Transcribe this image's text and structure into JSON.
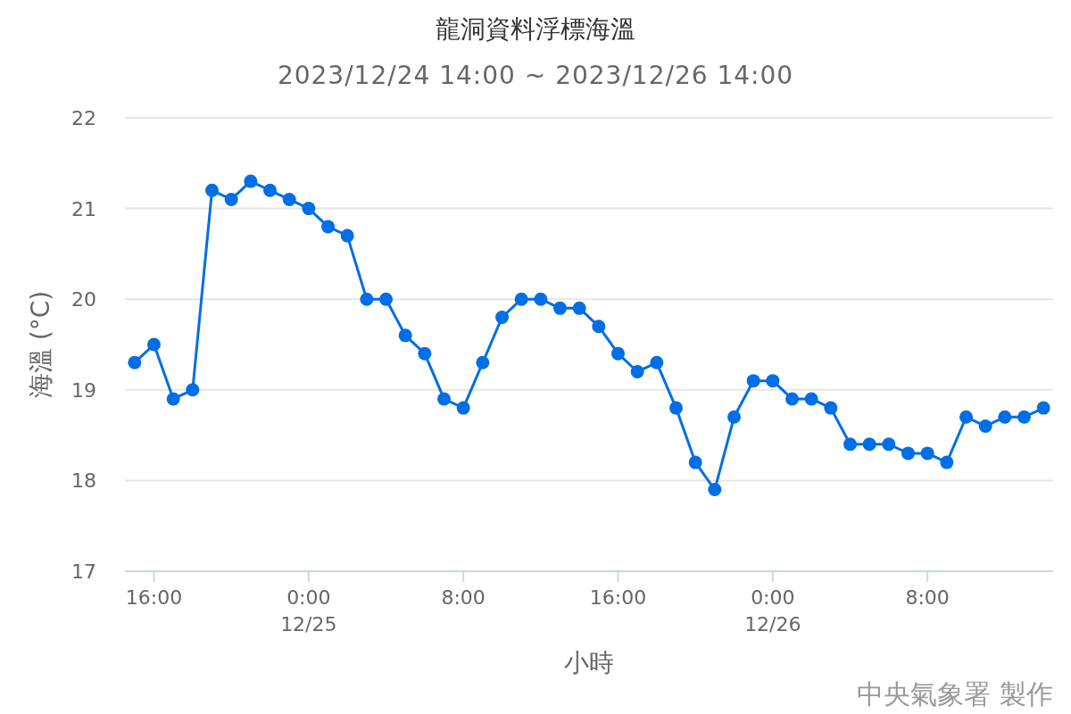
{
  "chart_data": {
    "type": "line",
    "title": "龍洞資料浮標海溫",
    "subtitle": "2023/12/24 14:00 ~ 2023/12/26 14:00",
    "xlabel": "小時",
    "ylabel": "海溫 (°C)",
    "x": [
      "2023-12-24T15:00",
      "2023-12-24T16:00",
      "2023-12-24T17:00",
      "2023-12-24T18:00",
      "2023-12-24T19:00",
      "2023-12-24T20:00",
      "2023-12-24T21:00",
      "2023-12-24T22:00",
      "2023-12-24T23:00",
      "2023-12-25T00:00",
      "2023-12-25T01:00",
      "2023-12-25T02:00",
      "2023-12-25T03:00",
      "2023-12-25T04:00",
      "2023-12-25T05:00",
      "2023-12-25T06:00",
      "2023-12-25T07:00",
      "2023-12-25T08:00",
      "2023-12-25T09:00",
      "2023-12-25T10:00",
      "2023-12-25T11:00",
      "2023-12-25T12:00",
      "2023-12-25T13:00",
      "2023-12-25T14:00",
      "2023-12-25T15:00",
      "2023-12-25T16:00",
      "2023-12-25T17:00",
      "2023-12-25T18:00",
      "2023-12-25T19:00",
      "2023-12-25T20:00",
      "2023-12-25T21:00",
      "2023-12-25T22:00",
      "2023-12-25T23:00",
      "2023-12-26T00:00",
      "2023-12-26T01:00",
      "2023-12-26T02:00",
      "2023-12-26T03:00",
      "2023-12-26T04:00",
      "2023-12-26T05:00",
      "2023-12-26T06:00",
      "2023-12-26T07:00",
      "2023-12-26T08:00",
      "2023-12-26T09:00",
      "2023-12-26T10:00",
      "2023-12-26T11:00",
      "2023-12-26T12:00",
      "2023-12-26T13:00",
      "2023-12-26T14:00"
    ],
    "series": [
      {
        "color": "#006ee6",
        "values": [
          19.3,
          19.5,
          18.9,
          19.0,
          21.2,
          21.1,
          21.3,
          21.2,
          21.1,
          21.0,
          20.8,
          20.7,
          20.0,
          20.0,
          19.6,
          19.4,
          18.9,
          18.8,
          19.3,
          19.8,
          20.0,
          20.0,
          19.9,
          19.9,
          19.7,
          19.4,
          19.2,
          19.3,
          18.8,
          18.2,
          17.9,
          18.7,
          19.1,
          19.1,
          18.9,
          18.9,
          18.8,
          18.4,
          18.4,
          18.4,
          18.3,
          18.3,
          18.2,
          18.7,
          18.6,
          18.7,
          18.7,
          18.8
        ]
      }
    ],
    "xlim": [
      "2023-12-24T14:30",
      "2023-12-26T14:30"
    ],
    "xticks": [
      {
        "value": "2023-12-24T16:00",
        "label": "16:00"
      },
      {
        "value": "2023-12-25T00:00",
        "label": "0:00\n12/25"
      },
      {
        "value": "2023-12-25T08:00",
        "label": "8:00"
      },
      {
        "value": "2023-12-25T16:00",
        "label": "16:00"
      },
      {
        "value": "2023-12-26T00:00",
        "label": "0:00\n12/26"
      },
      {
        "value": "2023-12-26T08:00",
        "label": "8:00"
      }
    ],
    "ylim": [
      17,
      22
    ],
    "yticks": [
      17,
      18,
      19,
      20,
      21,
      22
    ],
    "grid": "y",
    "marker": "circle",
    "line_style": "solid",
    "annotations": [
      "中央氣象署 製作"
    ]
  }
}
